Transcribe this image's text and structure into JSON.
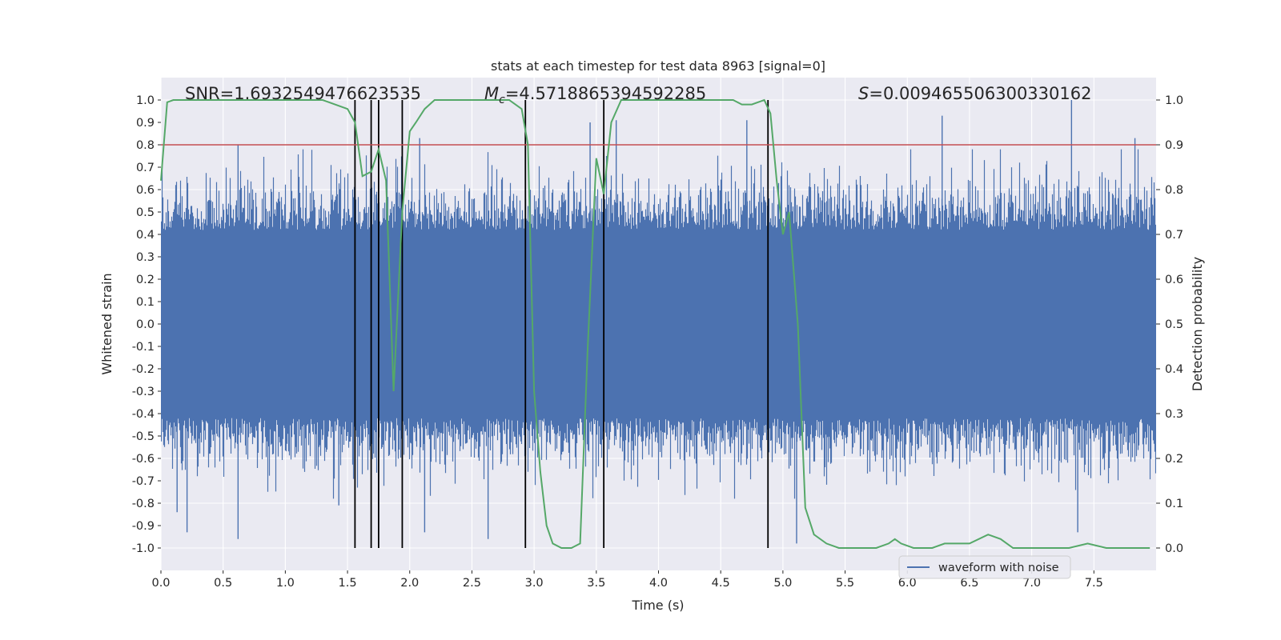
{
  "chart_data": {
    "type": "line",
    "title": "stats at each timestep for test data 8963 [signal=0]",
    "xlabel": "Time (s)",
    "ylabel": "Whitened strain",
    "y2label": "Detection probability",
    "xlim": [
      0.0,
      8.0
    ],
    "ylim": [
      -1.1,
      1.1
    ],
    "y2lim": [
      -0.05,
      1.05
    ],
    "xticks": [
      "0.0",
      "0.5",
      "1.0",
      "1.5",
      "2.0",
      "2.5",
      "3.0",
      "3.5",
      "4.0",
      "4.5",
      "5.0",
      "5.5",
      "6.0",
      "6.5",
      "7.0",
      "7.5"
    ],
    "yticks": [
      "-1.0",
      "-0.9",
      "-0.8",
      "-0.7",
      "-0.6",
      "-0.5",
      "-0.4",
      "-0.3",
      "-0.2",
      "-0.1",
      "0.0",
      "0.1",
      "0.2",
      "0.3",
      "0.4",
      "0.5",
      "0.6",
      "0.7",
      "0.8",
      "0.9",
      "1.0"
    ],
    "y2ticks": [
      "0.0",
      "0.1",
      "0.2",
      "0.3",
      "0.4",
      "0.5",
      "0.6",
      "0.7",
      "0.8",
      "0.9",
      "1.0"
    ],
    "grid": true,
    "legend_position": "lower-right",
    "legend": [
      "waveform with noise"
    ],
    "annotations": {
      "snr": "SNR=1.6932549476623535",
      "mc_label": "M",
      "mc_sub": "c",
      "mc_value": "=4.5718865394592285",
      "s_label": "S",
      "s_value": "=0.009465506300330162"
    },
    "threshold": {
      "value_y2": 0.9,
      "color": "#c44e52"
    },
    "vertical_lines_x": [
      1.56,
      1.69,
      1.75,
      1.94,
      2.93,
      3.56,
      4.88
    ],
    "waveform": {
      "name": "waveform with noise",
      "color": "#4c72b0",
      "description": "whitened noise strain sampled densely over 0-8 s, amplitude mostly within -0.6..0.6 with peaks near +/-1.0",
      "peaks": [
        {
          "x": 0.13,
          "y": -0.84
        },
        {
          "x": 0.21,
          "y": -0.93
        },
        {
          "x": 0.62,
          "y": -0.96
        },
        {
          "x": 0.62,
          "y": 0.8
        },
        {
          "x": 1.43,
          "y": -0.81
        },
        {
          "x": 2.08,
          "y": 0.83
        },
        {
          "x": 2.12,
          "y": -0.93
        },
        {
          "x": 2.63,
          "y": -0.96
        },
        {
          "x": 3.45,
          "y": 0.9
        },
        {
          "x": 3.66,
          "y": 0.91
        },
        {
          "x": 4.71,
          "y": 0.91
        },
        {
          "x": 5.11,
          "y": -0.98
        },
        {
          "x": 6.28,
          "y": 0.93
        },
        {
          "x": 7.32,
          "y": 1.0
        },
        {
          "x": 7.37,
          "y": -0.93
        },
        {
          "x": 7.83,
          "y": 0.83
        }
      ]
    },
    "series": [
      {
        "name": "detection probability",
        "color": "#55a868",
        "axis": "y2",
        "x": [
          0.0,
          0.05,
          0.1,
          0.2,
          0.5,
          0.9,
          1.3,
          1.5,
          1.56,
          1.62,
          1.69,
          1.75,
          1.81,
          1.87,
          1.94,
          2.0,
          2.05,
          2.12,
          2.2,
          2.5,
          2.8,
          2.9,
          2.95,
          3.0,
          3.05,
          3.1,
          3.15,
          3.22,
          3.3,
          3.37,
          3.43,
          3.5,
          3.56,
          3.62,
          3.7,
          4.0,
          4.5,
          4.6,
          4.67,
          4.75,
          4.85,
          4.9,
          4.95,
          5.0,
          5.05,
          5.12,
          5.18,
          5.25,
          5.35,
          5.45,
          5.6,
          5.75,
          5.85,
          5.9,
          5.95,
          6.05,
          6.2,
          6.3,
          6.4,
          6.5,
          6.65,
          6.75,
          6.85,
          7.0,
          7.2,
          7.3,
          7.45,
          7.6,
          7.95
        ],
        "values": [
          0.82,
          0.995,
          1.0,
          1.0,
          1.0,
          1.0,
          1.0,
          0.98,
          0.95,
          0.83,
          0.84,
          0.89,
          0.82,
          0.35,
          0.75,
          0.93,
          0.95,
          0.98,
          1.0,
          1.0,
          1.0,
          0.98,
          0.9,
          0.35,
          0.17,
          0.05,
          0.01,
          0.0,
          0.0,
          0.01,
          0.44,
          0.87,
          0.79,
          0.95,
          1.0,
          1.0,
          1.0,
          1.0,
          0.99,
          0.99,
          1.0,
          0.97,
          0.82,
          0.7,
          0.75,
          0.5,
          0.09,
          0.03,
          0.01,
          0.0,
          0.0,
          0.0,
          0.01,
          0.02,
          0.01,
          0.0,
          0.0,
          0.01,
          0.01,
          0.01,
          0.03,
          0.02,
          0.0,
          0.0,
          0.0,
          0.0,
          0.01,
          0.0,
          0.0
        ]
      }
    ]
  }
}
